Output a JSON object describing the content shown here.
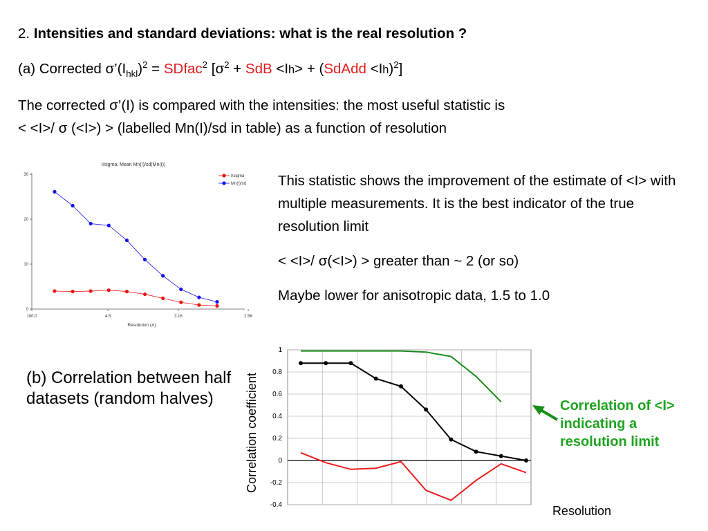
{
  "heading": {
    "number": "2.",
    "title": "Intensities and standard deviations: what is the real resolution ?"
  },
  "formula": {
    "prefix": "(a) Corrected ",
    "sigma": "σ",
    "prime_open": "’(I",
    "sub_hkl": "hkl",
    "close": ")",
    "sq": "2",
    "eq": " = ",
    "sdfac": "SDfac",
    "bracket_open": " [",
    "plus1": " + ",
    "sdb": "SdB",
    "ih_open": " <I",
    "ih_sub": "h",
    "ih_close": "> + (",
    "sdadd": "SdAdd",
    "tail": ")",
    "end": "]"
  },
  "para": {
    "line1_a": "The corrected ",
    "line1_b": "’(I) is compared with the intensities: the most useful statistic is",
    "line2_a": " < <I>/ ",
    "line2_b": " (<I>) >  (labelled Mn(I)/sd in table) as a function of resolution"
  },
  "right_text": {
    "p1": "This statistic shows the improvement of the estimate of <I> with multiple measurements. It is the best indicator of the true resolution limit",
    "p2a": "< <I>/ ",
    "p2b": "(<I>) >   greater than ~ 2 (or so)",
    "p3": "Maybe lower for anisotropic data, 1.5 to 1.0"
  },
  "section_b": {
    "label": "(b) Correlation between half datasets (random halves)"
  },
  "annotation": {
    "text": "Correlation of <I> indicating a resolution limit"
  },
  "chart_data": [
    {
      "type": "line",
      "title": "I/sigma, Mean Mn(I)/sd(Mn(I))",
      "xlabel": "Resolution (A)",
      "ylabel": "",
      "x_tick_labels": [
        "100.0",
        "4.5",
        "3.16",
        "2.58"
      ],
      "y_ticks": [
        0,
        10,
        20,
        30
      ],
      "ylim": [
        0,
        30
      ],
      "grid": false,
      "legend": "top-right",
      "series": [
        {
          "name": "I/sigma",
          "color": "#ee1111",
          "values": [
            4.0,
            3.9,
            4.0,
            4.2,
            3.9,
            3.3,
            2.4,
            1.5,
            0.9,
            0.7
          ]
        },
        {
          "name": "Mn(I)/sd",
          "color": "#1111ee",
          "values": [
            26.1,
            23.0,
            19.0,
            18.6,
            15.3,
            11.0,
            7.4,
            4.4,
            2.6,
            1.6
          ]
        }
      ]
    },
    {
      "type": "line",
      "title": "",
      "ylabel": "Correlation coefficient",
      "xlabel": "Resolution",
      "y_tick_labels": [
        "1",
        "0.8",
        "0.6",
        "0.4",
        "0.2",
        "0",
        "-0.2",
        "-0.4"
      ],
      "ylim": [
        -0.4,
        1.0
      ],
      "grid": true,
      "legend": "none",
      "series": [
        {
          "color": "#1a8c1a",
          "values": [
            0.99,
            0.99,
            0.99,
            0.99,
            0.99,
            0.98,
            0.94,
            0.76,
            0.53
          ]
        },
        {
          "color": "#000000",
          "values": [
            0.88,
            0.88,
            0.88,
            0.74,
            0.67,
            0.46,
            0.19,
            0.08,
            0.04,
            0.0
          ]
        },
        {
          "color": "#ee1b1b",
          "values": [
            0.07,
            -0.02,
            -0.08,
            -0.07,
            -0.01,
            -0.27,
            -0.36,
            -0.18,
            -0.03,
            -0.11
          ]
        }
      ]
    }
  ]
}
